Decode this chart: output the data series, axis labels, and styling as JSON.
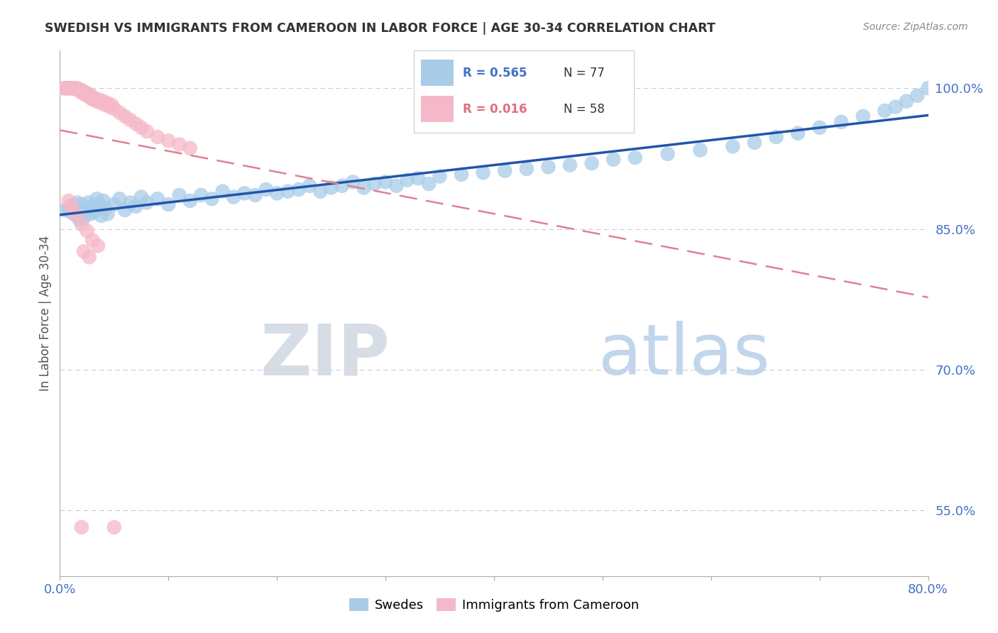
{
  "title": "SWEDISH VS IMMIGRANTS FROM CAMEROON IN LABOR FORCE | AGE 30-34 CORRELATION CHART",
  "source": "Source: ZipAtlas.com",
  "ylabel": "In Labor Force | Age 30-34",
  "xlim": [
    0.0,
    0.8
  ],
  "ylim": [
    0.48,
    1.04
  ],
  "xtick_positions": [
    0.0,
    0.1,
    0.2,
    0.3,
    0.4,
    0.5,
    0.6,
    0.7,
    0.8
  ],
  "xticklabels": [
    "0.0%",
    "",
    "",
    "",
    "",
    "",
    "",
    "",
    "80.0%"
  ],
  "ytick_positions": [
    0.55,
    0.7,
    0.85,
    1.0
  ],
  "yticklabels": [
    "55.0%",
    "70.0%",
    "85.0%",
    "100.0%"
  ],
  "grid_color": "#cccccc",
  "background_color": "#ffffff",
  "blue_color": "#a8cce8",
  "pink_color": "#f5b8c8",
  "blue_line_color": "#2255aa",
  "pink_line_color": "#e08090",
  "legend_r_blue": "R = 0.565",
  "legend_n_blue": "N = 77",
  "legend_r_pink": "R = 0.016",
  "legend_n_pink": "N = 58",
  "watermark_zip": "ZIP",
  "watermark_atlas": "atlas",
  "swedes_x": [
    0.005,
    0.008,
    0.01,
    0.012,
    0.014,
    0.016,
    0.018,
    0.02,
    0.022,
    0.024,
    0.026,
    0.028,
    0.03,
    0.032,
    0.034,
    0.036,
    0.038,
    0.04,
    0.042,
    0.044,
    0.05,
    0.055,
    0.06,
    0.065,
    0.07,
    0.075,
    0.08,
    0.09,
    0.1,
    0.11,
    0.12,
    0.13,
    0.14,
    0.15,
    0.16,
    0.17,
    0.18,
    0.19,
    0.2,
    0.21,
    0.22,
    0.23,
    0.24,
    0.25,
    0.26,
    0.27,
    0.28,
    0.29,
    0.3,
    0.31,
    0.32,
    0.33,
    0.34,
    0.35,
    0.37,
    0.39,
    0.41,
    0.43,
    0.45,
    0.47,
    0.49,
    0.51,
    0.53,
    0.56,
    0.59,
    0.62,
    0.64,
    0.66,
    0.68,
    0.7,
    0.72,
    0.74,
    0.76,
    0.77,
    0.78,
    0.79,
    0.8
  ],
  "swedes_y": [
    0.87,
    0.872,
    0.868,
    0.875,
    0.865,
    0.878,
    0.86,
    0.876,
    0.862,
    0.87,
    0.878,
    0.866,
    0.874,
    0.868,
    0.882,
    0.876,
    0.864,
    0.88,
    0.872,
    0.866,
    0.876,
    0.882,
    0.87,
    0.878,
    0.874,
    0.884,
    0.878,
    0.882,
    0.876,
    0.886,
    0.88,
    0.886,
    0.882,
    0.89,
    0.884,
    0.888,
    0.886,
    0.892,
    0.888,
    0.89,
    0.892,
    0.896,
    0.89,
    0.894,
    0.896,
    0.9,
    0.894,
    0.898,
    0.9,
    0.896,
    0.902,
    0.904,
    0.898,
    0.906,
    0.908,
    0.91,
    0.912,
    0.914,
    0.916,
    0.918,
    0.92,
    0.924,
    0.926,
    0.93,
    0.934,
    0.938,
    0.942,
    0.948,
    0.952,
    0.958,
    0.964,
    0.97,
    0.976,
    0.98,
    0.986,
    0.992,
    1.0
  ],
  "cameroon_x": [
    0.003,
    0.005,
    0.006,
    0.007,
    0.008,
    0.009,
    0.01,
    0.011,
    0.012,
    0.013,
    0.014,
    0.015,
    0.016,
    0.017,
    0.018,
    0.019,
    0.02,
    0.021,
    0.022,
    0.023,
    0.024,
    0.025,
    0.026,
    0.027,
    0.028,
    0.029,
    0.03,
    0.031,
    0.032,
    0.034,
    0.036,
    0.038,
    0.04,
    0.042,
    0.044,
    0.046,
    0.048,
    0.05,
    0.055,
    0.06,
    0.065,
    0.07,
    0.075,
    0.08,
    0.09,
    0.1,
    0.11,
    0.12,
    0.008,
    0.01,
    0.012,
    0.015,
    0.02,
    0.025,
    0.03,
    0.035,
    0.022,
    0.027
  ],
  "cameroon_y": [
    1.0,
    1.0,
    1.0,
    1.0,
    1.0,
    1.0,
    1.0,
    1.0,
    1.0,
    1.0,
    1.0,
    1.0,
    1.0,
    0.998,
    0.998,
    0.996,
    0.998,
    0.996,
    0.994,
    0.996,
    0.994,
    0.992,
    0.994,
    0.992,
    0.99,
    0.992,
    0.988,
    0.99,
    0.988,
    0.986,
    0.988,
    0.984,
    0.986,
    0.982,
    0.984,
    0.98,
    0.982,
    0.978,
    0.974,
    0.97,
    0.966,
    0.962,
    0.958,
    0.954,
    0.948,
    0.944,
    0.94,
    0.936,
    0.88,
    0.875,
    0.87,
    0.865,
    0.855,
    0.848,
    0.838,
    0.832,
    0.826,
    0.82
  ]
}
